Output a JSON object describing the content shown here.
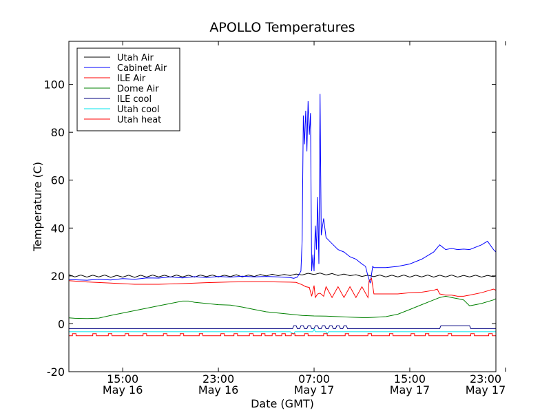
{
  "chart_data": {
    "type": "line",
    "title": "APOLLO Temperatures",
    "xlabel": "Date (GMT)",
    "ylabel": "Temperature (C)",
    "xlim": [
      10.5,
      46.2
    ],
    "ylim": [
      -20,
      118
    ],
    "x_unit": "hours since 2015-05-16 00:00 GMT",
    "x_ticks": [
      {
        "x": 15,
        "time": "15:00",
        "date": "May 16"
      },
      {
        "x": 23,
        "time": "23:00",
        "date": "May 16"
      },
      {
        "x": 31,
        "time": "07:00",
        "date": "May 17"
      },
      {
        "x": 39,
        "time": "15:00",
        "date": "May 17"
      },
      {
        "x": 47,
        "time": "23:00",
        "date": "May 17"
      }
    ],
    "y_ticks": [
      -20,
      0,
      20,
      40,
      60,
      80,
      100
    ],
    "y_tick_labels": [
      "-20",
      "0",
      "20",
      "40",
      "60",
      "80",
      "100"
    ],
    "grid": false,
    "legend_position": "top-left",
    "series": [
      {
        "name": "Utah Air",
        "color": "#000000",
        "x": [
          10.5,
          11,
          11.5,
          12,
          12.5,
          13,
          13.5,
          14,
          14.5,
          15,
          15.5,
          16,
          16.5,
          17,
          17.5,
          18,
          18.5,
          19,
          19.5,
          20,
          20.5,
          21,
          21.5,
          22,
          22.5,
          23,
          23.5,
          24,
          24.5,
          25,
          25.5,
          26,
          26.5,
          27,
          27.5,
          28,
          28.5,
          29,
          29.5,
          30,
          30.5,
          31,
          31.5,
          32,
          32.5,
          33,
          33.5,
          34,
          34.5,
          35,
          35.5,
          36,
          36.5,
          37,
          37.5,
          38,
          38.5,
          39,
          39.5,
          40,
          40.5,
          41,
          41.5,
          42,
          42.5,
          43,
          43.5,
          44,
          44.5,
          45,
          45.5,
          46,
          46.2
        ],
        "y": [
          20.5,
          19.6,
          20.4,
          19.5,
          20.3,
          19.6,
          20.4,
          19.4,
          20.2,
          19.5,
          20.3,
          19.4,
          20.3,
          19.5,
          20.4,
          19.6,
          20.3,
          19.5,
          20.4,
          19.6,
          20.3,
          19.5,
          20.4,
          19.7,
          20.4,
          19.6,
          20.3,
          19.7,
          20.5,
          19.6,
          20.4,
          19.8,
          20.6,
          20.0,
          20.7,
          20.1,
          20.6,
          20.2,
          20.8,
          20.4,
          21.1,
          20.6,
          21.2,
          20.4,
          21.0,
          20.2,
          20.8,
          20.1,
          20.5,
          19.8,
          20.3,
          19.7,
          20.4,
          19.6,
          20.3,
          19.6,
          20.4,
          19.5,
          20.3,
          19.6,
          20.4,
          19.5,
          20.3,
          19.6,
          20.4,
          19.5,
          20.2,
          19.6,
          20.3,
          19.5,
          20.2,
          19.7,
          20.0
        ]
      },
      {
        "name": "Cabinet Air",
        "color": "#0000ff",
        "x": [
          10.5,
          12,
          13,
          14,
          15,
          16,
          17,
          18,
          19,
          20,
          21,
          22,
          23,
          24,
          25,
          26,
          27,
          28,
          29,
          29.3,
          29.6,
          29.9,
          30.0,
          30.1,
          30.2,
          30.3,
          30.4,
          30.5,
          30.6,
          30.7,
          30.8,
          30.9,
          31.0,
          31.1,
          31.2,
          31.3,
          31.4,
          31.5,
          31.6,
          31.8,
          32.0,
          32.2,
          32.4,
          32.6,
          33,
          33.5,
          34,
          34.5,
          35,
          35.3,
          35.5,
          35.7,
          35.9,
          36.0,
          36.2,
          37,
          38,
          39,
          40,
          41,
          41.5,
          42,
          42.5,
          43,
          43.5,
          44,
          45,
          45.5,
          46,
          46.2
        ],
        "y": [
          18.5,
          18.2,
          18.6,
          18.3,
          18.9,
          18.6,
          19.2,
          19.1,
          19.6,
          19.2,
          19.7,
          19.3,
          19.8,
          19.5,
          19.9,
          19.6,
          19.8,
          19.6,
          19.3,
          19.0,
          19.5,
          22,
          35,
          87,
          75,
          89,
          72,
          93,
          79,
          88,
          22,
          29,
          22,
          41,
          31,
          53,
          25,
          96,
          37,
          44,
          36,
          35,
          34,
          33,
          31,
          30,
          28,
          27,
          25,
          24,
          20,
          17,
          24,
          23.5,
          23.5,
          23.5,
          24,
          25,
          27,
          30,
          33,
          31,
          31.5,
          31,
          31.2,
          31,
          33,
          34.5,
          31,
          30
        ]
      },
      {
        "name": "ILE Air",
        "color": "#ff0000",
        "x": [
          10.5,
          12,
          14,
          16,
          18,
          20,
          22,
          24,
          26,
          27,
          28,
          29,
          29.5,
          30,
          30.3,
          30.6,
          30.8,
          31,
          31.1,
          31.3,
          31.5,
          31.8,
          32,
          32.5,
          33,
          33.5,
          34,
          34.5,
          35,
          35.5,
          35.6,
          35.8,
          36,
          37,
          38,
          39,
          40,
          41,
          41.3,
          41.5,
          42,
          42.5,
          43,
          43.5,
          44,
          45,
          46,
          46.2
        ],
        "y": [
          18,
          17.5,
          17,
          16.5,
          16.5,
          16.8,
          17.2,
          17.5,
          17.6,
          17.6,
          17.5,
          17.4,
          17.3,
          16.3,
          15.5,
          15.2,
          11.5,
          16,
          11,
          12.5,
          12.8,
          11.5,
          15.5,
          11,
          15.5,
          11,
          15.5,
          11,
          15.5,
          11,
          18,
          19,
          12.5,
          12.5,
          12.5,
          13,
          13.2,
          14,
          14.5,
          12.5,
          12,
          12,
          11.5,
          11.5,
          12,
          13,
          14.5,
          14
        ]
      },
      {
        "name": "Dome Air",
        "color": "#008000",
        "x": [
          10.5,
          11,
          12,
          13,
          14,
          15,
          16,
          17,
          18,
          19,
          19.5,
          20,
          20.5,
          21,
          22,
          23,
          24,
          25,
          26,
          27,
          28,
          29,
          30,
          31,
          32,
          33,
          34,
          35,
          35.5,
          36,
          37,
          38,
          39,
          40,
          41,
          41.5,
          42,
          42.5,
          43,
          43.5,
          44,
          44.5,
          45,
          46,
          46.2
        ],
        "y": [
          2.5,
          2.3,
          2.2,
          2.4,
          3.5,
          4.5,
          5.5,
          6.5,
          7.5,
          8.5,
          9,
          9.5,
          9.5,
          9,
          8.5,
          8,
          7.8,
          7,
          6,
          5,
          4.5,
          4,
          3.5,
          3.3,
          3.2,
          3.0,
          2.8,
          2.6,
          2.6,
          2.7,
          3.0,
          4,
          6,
          8,
          10,
          11,
          11.5,
          11,
          10.5,
          10,
          7.5,
          8,
          8.5,
          10,
          10.5
        ]
      },
      {
        "name": "ILE cool",
        "color": "#000080",
        "x": [
          10.5,
          29.2,
          29.3,
          29.5,
          29.6,
          29.8,
          29.9,
          30.1,
          30.2,
          30.4,
          30.5,
          30.7,
          30.8,
          31.0,
          31.1,
          31.3,
          31.4,
          31.6,
          31.7,
          31.9,
          32.0,
          32.2,
          32.3,
          32.5,
          32.6,
          32.8,
          32.9,
          33.1,
          33.2,
          33.4,
          33.5,
          33.7,
          33.8,
          34,
          35,
          36,
          41.5,
          41.6,
          44,
          44.1,
          46.2
        ],
        "y": [
          -2,
          -2,
          -0.8,
          -0.8,
          -2,
          -2,
          -0.8,
          -0.8,
          -2,
          -2,
          -0.8,
          -0.8,
          -2,
          -2,
          -0.8,
          -0.8,
          -2,
          -2,
          -0.8,
          -0.8,
          -2,
          -2,
          -0.8,
          -0.8,
          -2,
          -2,
          -0.8,
          -0.8,
          -2,
          -2,
          -0.8,
          -0.8,
          -2,
          -2,
          -2,
          -2,
          -2,
          -0.8,
          -0.8,
          -2,
          -2
        ]
      },
      {
        "name": "Utah cool",
        "color": "#00e5ee",
        "x": [
          10.5,
          29.0,
          29.3,
          29.4,
          29.8,
          30.9,
          31.0,
          31.1,
          32.0,
          32.1,
          32.2,
          46.2
        ],
        "y": [
          -3.3,
          -3.3,
          -4.3,
          -3.3,
          -3.3,
          -3.3,
          -2.2,
          -3.3,
          -3.3,
          -4.3,
          -3.3,
          -3.3
        ]
      },
      {
        "name": "Utah heat",
        "color": "#ff0000",
        "pulses": [
          10.8,
          12.5,
          13.8,
          15.2,
          16.7,
          18.4,
          19.8,
          21.4,
          23.2,
          24.3,
          25.6,
          26.6,
          27.5,
          28.3,
          29.1,
          30.2,
          31.8,
          33.6,
          35.5,
          37.3,
          39.1,
          40.3,
          42.2,
          44.1,
          45.6
        ],
        "pulse_width": 0.3,
        "low": -5,
        "high": -4.1
      }
    ]
  }
}
